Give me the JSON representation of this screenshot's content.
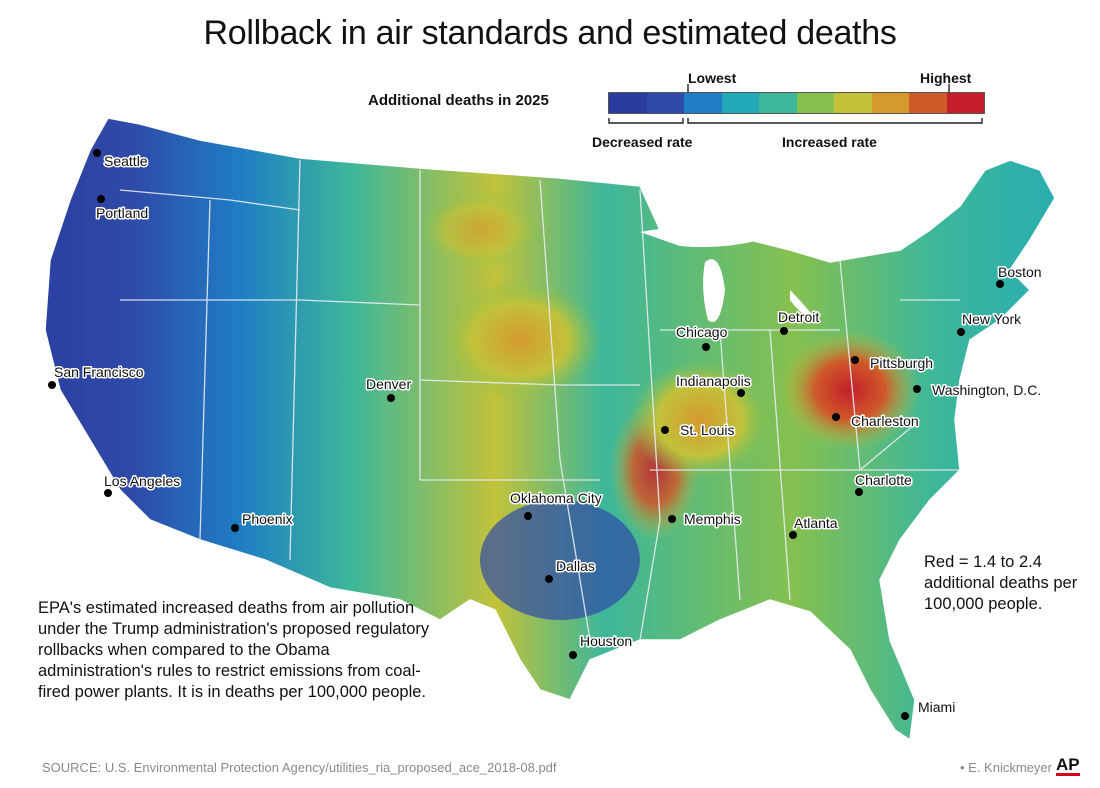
{
  "title": "Rollback in air standards and estimated deaths",
  "legend": {
    "title": "Additional deaths in 2025",
    "lowest": "Lowest",
    "highest": "Highest",
    "decreased": "Decreased rate",
    "increased": "Increased rate",
    "colors": [
      "#2a3b9e",
      "#2f4aa8",
      "#1f7ec4",
      "#22aab8",
      "#3db79a",
      "#86c04f",
      "#c2c23a",
      "#d49a2e",
      "#cf5a2a",
      "#c41e2a"
    ]
  },
  "cities": [
    {
      "name": "Seattle"
    },
    {
      "name": "Portland"
    },
    {
      "name": "San Francisco"
    },
    {
      "name": "Los Angeles"
    },
    {
      "name": "Phoenix"
    },
    {
      "name": "Denver"
    },
    {
      "name": "Oklahoma City"
    },
    {
      "name": "Dallas"
    },
    {
      "name": "Houston"
    },
    {
      "name": "St. Louis"
    },
    {
      "name": "Memphis"
    },
    {
      "name": "Chicago"
    },
    {
      "name": "Indianapolis"
    },
    {
      "name": "Detroit"
    },
    {
      "name": "Pittsburgh"
    },
    {
      "name": "Charleston"
    },
    {
      "name": "Washington, D.C."
    },
    {
      "name": "New York"
    },
    {
      "name": "Boston"
    },
    {
      "name": "Charlotte"
    },
    {
      "name": "Atlanta"
    },
    {
      "name": "Miami"
    }
  ],
  "note": "EPA's estimated increased deaths from air pollution under the Trump administration's proposed regulatory rollbacks when compared to the Obama administration's rules to restrict emissions from coal-fired power plants. It is in deaths per 100,000 people.",
  "note_red": "Red = 1.4 to 2.4 additional deaths per 100,000 people.",
  "source": "SOURCE: U.S. Environmental Protection Agency/utilities_ria_proposed_ace_2018-08.pdf",
  "credit": "• E. Knickmeyer",
  "agency": "AP"
}
